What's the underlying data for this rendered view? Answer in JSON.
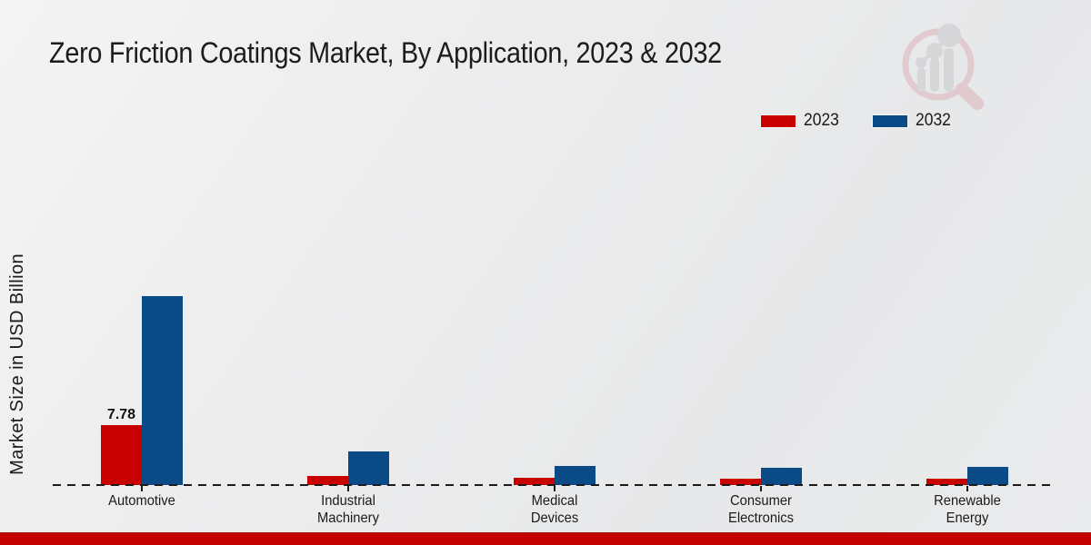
{
  "title": "Zero Friction Coatings Market, By Application, 2023 & 2032",
  "watermark": "market-research-future-logo",
  "footer_color": "#c40000",
  "chart_data": {
    "type": "bar",
    "title": "Zero Friction Coatings Market, By Application, 2023 & 2032",
    "xlabel": "",
    "ylabel": "Market Size in USD Billion",
    "categories": [
      "Automotive",
      "Industrial Machinery",
      "Medical Devices",
      "Consumer Electronics",
      "Renewable Energy"
    ],
    "series": [
      {
        "name": "2023",
        "color": "#c80000",
        "values": [
          7.78,
          1.2,
          0.9,
          0.8,
          0.8
        ]
      },
      {
        "name": "2032",
        "color": "#094a87",
        "values": [
          24.5,
          4.4,
          2.5,
          2.2,
          2.4
        ]
      }
    ],
    "data_labels": [
      {
        "series": "2023",
        "category": "Automotive",
        "text": "7.78"
      }
    ],
    "ylim": [
      0,
      26
    ],
    "grid": false,
    "baseline_style": "dashed",
    "legend_position": "top-right"
  }
}
